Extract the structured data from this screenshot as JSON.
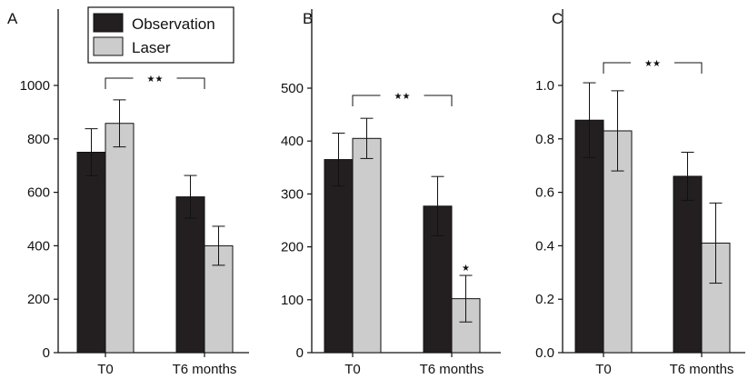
{
  "colors": {
    "observation": "#231f20",
    "laser": "#cccccc",
    "axis": "#111111"
  },
  "legend": {
    "observation_label": "Observation",
    "laser_label": "Laser"
  },
  "chart_data": [
    {
      "type": "bar",
      "panel_label": "A",
      "categories": [
        "T0",
        "T6 months"
      ],
      "series": [
        {
          "name": "Observation",
          "values": [
            750,
            583
          ],
          "errors": [
            88,
            80
          ]
        },
        {
          "name": "Laser",
          "values": [
            858,
            400
          ],
          "errors": [
            88,
            73
          ]
        }
      ],
      "yticks": [
        "0",
        "200",
        "400",
        "600",
        "800",
        "1000"
      ],
      "ylim": [
        0,
        1000
      ],
      "significance": [
        {
          "type": "bracket",
          "label": "★★",
          "from": "T0",
          "to": "T6 months"
        }
      ]
    },
    {
      "type": "bar",
      "panel_label": "B",
      "categories": [
        "T0",
        "T6 months"
      ],
      "series": [
        {
          "name": "Observation",
          "values": [
            365,
            277
          ],
          "errors": [
            50,
            56
          ]
        },
        {
          "name": "Laser",
          "values": [
            405,
            102
          ],
          "errors": [
            38,
            44
          ]
        }
      ],
      "yticks": [
        "0",
        "100",
        "200",
        "300",
        "400",
        "500"
      ],
      "ylim": [
        0,
        500
      ],
      "significance": [
        {
          "type": "bracket",
          "label": "★★",
          "from": "T0",
          "to": "T6 months"
        },
        {
          "type": "bar",
          "label": "★",
          "category": "T6 months",
          "series": "Laser"
        }
      ]
    },
    {
      "type": "bar",
      "panel_label": "C",
      "categories": [
        "T0",
        "T6 months"
      ],
      "series": [
        {
          "name": "Observation",
          "values": [
            0.87,
            0.66
          ],
          "errors": [
            0.14,
            0.09
          ]
        },
        {
          "name": "Laser",
          "values": [
            0.83,
            0.41
          ],
          "errors": [
            0.15,
            0.15
          ]
        }
      ],
      "yticks": [
        "0.0",
        "0.2",
        "0.4",
        "0.6",
        "0.8",
        "1.0"
      ],
      "ylim": [
        0,
        1.0
      ],
      "significance": [
        {
          "type": "bracket",
          "label": "★★",
          "from": "T0",
          "to": "T6 months"
        }
      ]
    }
  ]
}
